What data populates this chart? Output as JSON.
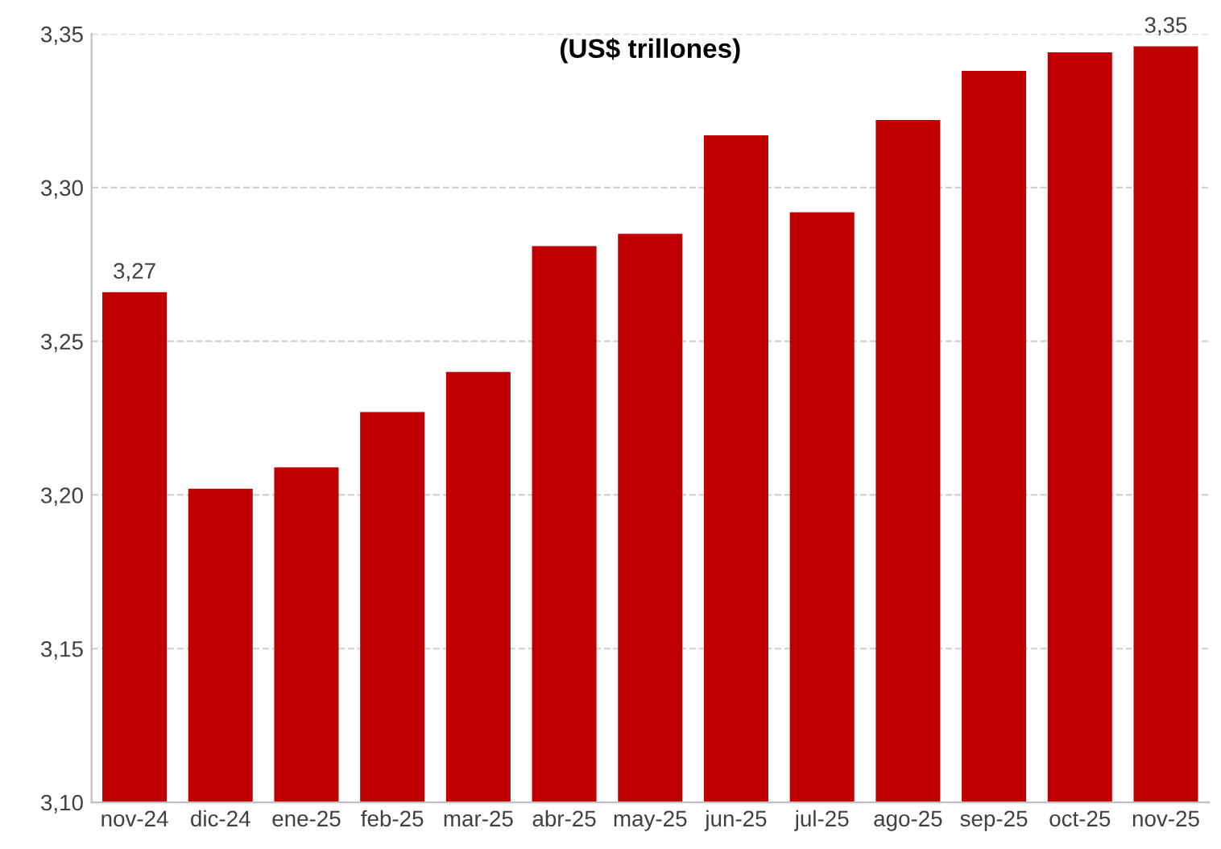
{
  "chart_data": {
    "type": "bar",
    "title": "(US$ trillones)",
    "categories": [
      "nov-24",
      "dic-24",
      "ene-25",
      "feb-25",
      "mar-25",
      "abr-25",
      "may-25",
      "jun-25",
      "jul-25",
      "ago-25",
      "sep-25",
      "oct-25",
      "nov-25"
    ],
    "values": [
      3.266,
      3.202,
      3.209,
      3.227,
      3.24,
      3.281,
      3.285,
      3.317,
      3.292,
      3.322,
      3.338,
      3.344,
      3.346
    ],
    "value_labels": [
      "3,27",
      null,
      null,
      null,
      null,
      null,
      null,
      null,
      null,
      null,
      null,
      null,
      "3,35"
    ],
    "color": "#c00000",
    "ylim": [
      3.1,
      3.35
    ],
    "yticks": [
      {
        "value": 3.1,
        "label": "3,10"
      },
      {
        "value": 3.15,
        "label": "3,15"
      },
      {
        "value": 3.2,
        "label": "3,20"
      },
      {
        "value": 3.25,
        "label": "3,25"
      },
      {
        "value": 3.3,
        "label": "3,30"
      },
      {
        "value": 3.35,
        "label": "3,35"
      }
    ],
    "grid": "y"
  }
}
